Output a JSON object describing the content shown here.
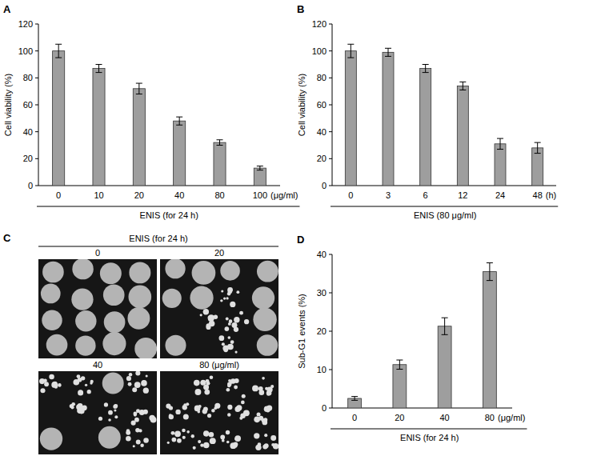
{
  "chart_data": [
    {
      "type": "bar",
      "panel": "A",
      "x_label": "ENIS (for 24 h)",
      "x_unit": "(μg/ml)",
      "y_label": "Cell viability (%)",
      "categories": [
        "0",
        "10",
        "20",
        "40",
        "80",
        "100"
      ],
      "values": [
        100,
        87,
        72,
        48,
        32,
        13
      ],
      "errors": [
        5,
        3,
        4,
        3,
        2,
        1.5
      ],
      "color": "#9e9e9e",
      "ylim": [
        0,
        120
      ],
      "yticks": [
        0,
        20,
        40,
        60,
        80,
        100,
        120
      ],
      "grid": false
    },
    {
      "type": "bar",
      "panel": "B",
      "x_label": "ENIS (80 μg/ml)",
      "x_unit": "(h)",
      "y_label": "Cell viability (%)",
      "categories": [
        "0",
        "3",
        "6",
        "12",
        "24",
        "48"
      ],
      "values": [
        100,
        99,
        87,
        74,
        31,
        28
      ],
      "errors": [
        5,
        3,
        3,
        3,
        4,
        4
      ],
      "color": "#9e9e9e",
      "ylim": [
        0,
        120
      ],
      "yticks": [
        0,
        20,
        40,
        60,
        80,
        100,
        120
      ],
      "grid": false
    },
    {
      "type": "bar",
      "panel": "D",
      "x_label": "ENIS (for 24 h)",
      "x_unit": "(μg/ml)",
      "y_label": "Sub-G1 events (%)",
      "categories": [
        "0",
        "20",
        "40",
        "80"
      ],
      "values": [
        2.5,
        11.3,
        21.3,
        35.5
      ],
      "errors": [
        0.5,
        1.2,
        2.2,
        2.3
      ],
      "color": "#9e9e9e",
      "ylim": [
        0,
        40
      ],
      "yticks": [
        0,
        10,
        20,
        30,
        40
      ],
      "grid": false
    }
  ],
  "images": {
    "panel": "C",
    "title": "ENIS (for 24 h)",
    "labels": [
      "0",
      "20",
      "40",
      "80 (μg/ml)"
    ]
  }
}
